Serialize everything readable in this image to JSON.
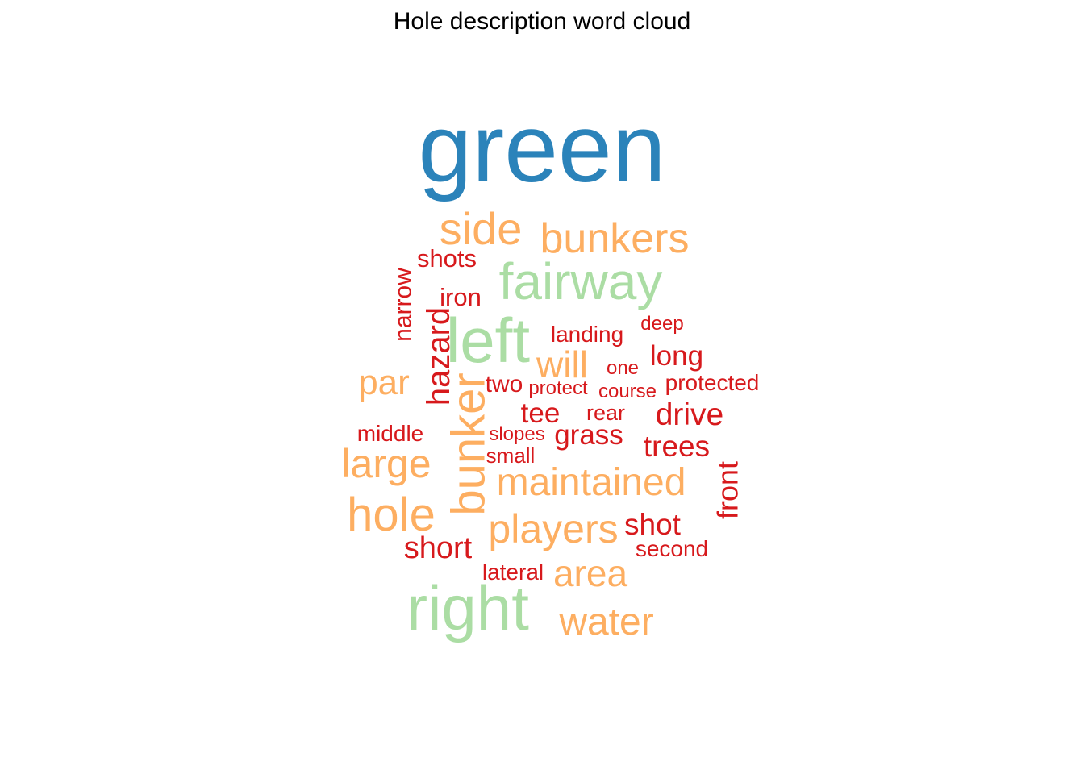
{
  "title": "Hole description word cloud",
  "chart_data": {
    "type": "wordcloud",
    "title": "Hole description word cloud",
    "colors": {
      "top": "#2b83ba",
      "second": "#abdda4",
      "third": "#fdae61",
      "fourth": "#d7191c"
    },
    "words": [
      {
        "word": "green",
        "tier": "top",
        "color": "#2b83ba",
        "orientation": "horizontal"
      },
      {
        "word": "left",
        "tier": "second",
        "color": "#abdda4",
        "orientation": "horizontal"
      },
      {
        "word": "right",
        "tier": "second",
        "color": "#abdda4",
        "orientation": "horizontal"
      },
      {
        "word": "fairway",
        "tier": "second",
        "color": "#abdda4",
        "orientation": "horizontal"
      },
      {
        "word": "bunker",
        "tier": "third",
        "color": "#fdae61",
        "orientation": "vertical"
      },
      {
        "word": "side",
        "tier": "third",
        "color": "#fdae61",
        "orientation": "horizontal"
      },
      {
        "word": "hole",
        "tier": "third",
        "color": "#fdae61",
        "orientation": "horizontal"
      },
      {
        "word": "bunkers",
        "tier": "third",
        "color": "#fdae61",
        "orientation": "horizontal"
      },
      {
        "word": "maintained",
        "tier": "third",
        "color": "#fdae61",
        "orientation": "horizontal"
      },
      {
        "word": "players",
        "tier": "third",
        "color": "#fdae61",
        "orientation": "horizontal"
      },
      {
        "word": "water",
        "tier": "third",
        "color": "#fdae61",
        "orientation": "horizontal"
      },
      {
        "word": "large",
        "tier": "third",
        "color": "#fdae61",
        "orientation": "horizontal"
      },
      {
        "word": "area",
        "tier": "third",
        "color": "#fdae61",
        "orientation": "horizontal"
      },
      {
        "word": "will",
        "tier": "third",
        "color": "#fdae61",
        "orientation": "horizontal"
      },
      {
        "word": "par",
        "tier": "third",
        "color": "#fdae61",
        "orientation": "horizontal"
      },
      {
        "word": "hazard",
        "tier": "fourth",
        "color": "#d7191c",
        "orientation": "vertical"
      },
      {
        "word": "narrow",
        "tier": "fourth",
        "color": "#d7191c",
        "orientation": "vertical"
      },
      {
        "word": "front",
        "tier": "fourth",
        "color": "#d7191c",
        "orientation": "vertical"
      },
      {
        "word": "shots",
        "tier": "fourth",
        "color": "#d7191c",
        "orientation": "horizontal"
      },
      {
        "word": "iron",
        "tier": "fourth",
        "color": "#d7191c",
        "orientation": "horizontal"
      },
      {
        "word": "landing",
        "tier": "fourth",
        "color": "#d7191c",
        "orientation": "horizontal"
      },
      {
        "word": "deep",
        "tier": "fourth",
        "color": "#d7191c",
        "orientation": "horizontal"
      },
      {
        "word": "long",
        "tier": "fourth",
        "color": "#d7191c",
        "orientation": "horizontal"
      },
      {
        "word": "one",
        "tier": "fourth",
        "color": "#d7191c",
        "orientation": "horizontal"
      },
      {
        "word": "two",
        "tier": "fourth",
        "color": "#d7191c",
        "orientation": "horizontal"
      },
      {
        "word": "protect",
        "tier": "fourth",
        "color": "#d7191c",
        "orientation": "horizontal"
      },
      {
        "word": "course",
        "tier": "fourth",
        "color": "#d7191c",
        "orientation": "horizontal"
      },
      {
        "word": "protected",
        "tier": "fourth",
        "color": "#d7191c",
        "orientation": "horizontal"
      },
      {
        "word": "tee",
        "tier": "fourth",
        "color": "#d7191c",
        "orientation": "horizontal"
      },
      {
        "word": "rear",
        "tier": "fourth",
        "color": "#d7191c",
        "orientation": "horizontal"
      },
      {
        "word": "drive",
        "tier": "fourth",
        "color": "#d7191c",
        "orientation": "horizontal"
      },
      {
        "word": "middle",
        "tier": "fourth",
        "color": "#d7191c",
        "orientation": "horizontal"
      },
      {
        "word": "slopes",
        "tier": "fourth",
        "color": "#d7191c",
        "orientation": "horizontal"
      },
      {
        "word": "grass",
        "tier": "fourth",
        "color": "#d7191c",
        "orientation": "horizontal"
      },
      {
        "word": "trees",
        "tier": "fourth",
        "color": "#d7191c",
        "orientation": "horizontal"
      },
      {
        "word": "small",
        "tier": "fourth",
        "color": "#d7191c",
        "orientation": "horizontal"
      },
      {
        "word": "shot",
        "tier": "fourth",
        "color": "#d7191c",
        "orientation": "horizontal"
      },
      {
        "word": "short",
        "tier": "fourth",
        "color": "#d7191c",
        "orientation": "horizontal"
      },
      {
        "word": "second",
        "tier": "fourth",
        "color": "#d7191c",
        "orientation": "horizontal"
      },
      {
        "word": "lateral",
        "tier": "fourth",
        "color": "#d7191c",
        "orientation": "horizontal"
      }
    ]
  }
}
